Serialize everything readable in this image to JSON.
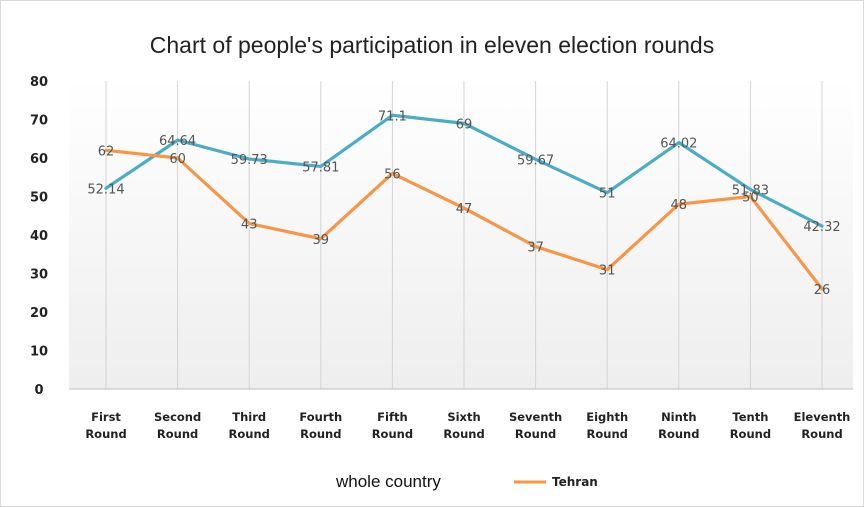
{
  "chart_data": {
    "type": "line",
    "title": "Chart of people's participation in eleven election rounds",
    "categories": [
      [
        "First",
        "Round"
      ],
      [
        "Second",
        "Round"
      ],
      [
        "Third",
        "Round"
      ],
      [
        "Fourth",
        "Round"
      ],
      [
        "Fifth",
        "Round"
      ],
      [
        "Sixth",
        "Round"
      ],
      [
        "Seventh",
        "Round"
      ],
      [
        "Eighth",
        "Round"
      ],
      [
        "Ninth",
        "Round"
      ],
      [
        "Tenth",
        "Round"
      ],
      [
        "Eleventh",
        "Round"
      ]
    ],
    "yticks": [
      "0",
      "10",
      "20",
      "30",
      "40",
      "50",
      "60",
      "70",
      "80"
    ],
    "ylim": [
      0,
      80
    ],
    "series": [
      {
        "name": "whole country",
        "color": "#4bacc6",
        "values": [
          52.14,
          64.64,
          59.73,
          57.81,
          71.1,
          69,
          59.67,
          51,
          64.02,
          51.83,
          42.32
        ],
        "labels": [
          "52.14",
          "64.64",
          "59.73",
          "57.81",
          "71.1",
          "69",
          "59.67",
          "51",
          "64.02",
          "51.83",
          "42.32"
        ]
      },
      {
        "name": "Tehran",
        "color": "#f79646",
        "values": [
          62,
          60,
          43,
          39,
          56,
          47,
          37,
          31,
          48,
          50,
          26
        ],
        "labels": [
          "62",
          "60",
          "43",
          "39",
          "56",
          "47",
          "37",
          "31",
          "48",
          "50",
          "26"
        ]
      }
    ],
    "legend": "bottom",
    "grid": "vertical"
  }
}
